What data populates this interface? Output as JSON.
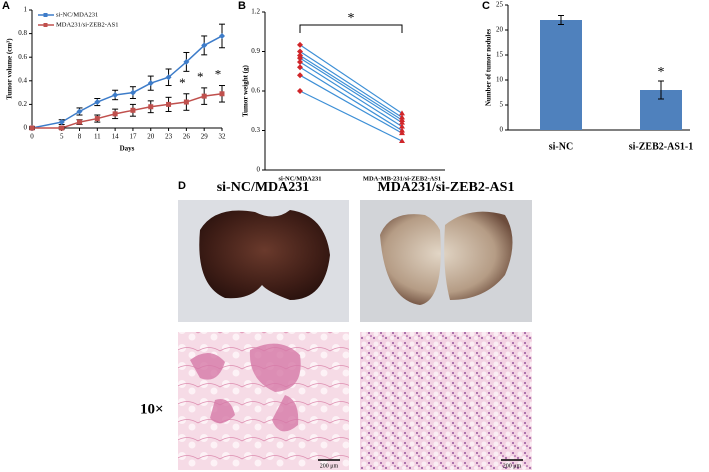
{
  "chart_data": [
    {
      "type": "line",
      "label": "A",
      "xlabel": "Days",
      "ylabel": "Tumor volume (cm³)",
      "x": [
        0,
        5,
        8,
        11,
        14,
        17,
        20,
        23,
        26,
        29,
        32
      ],
      "xlim": [
        0,
        32
      ],
      "xticks": [
        0,
        5,
        8,
        11,
        14,
        17,
        20,
        23,
        26,
        29,
        32
      ],
      "ylim": [
        0,
        1
      ],
      "yticks": [
        0,
        0.2,
        0.4,
        0.6,
        0.8,
        1
      ],
      "legend": "upper left",
      "series": [
        {
          "name": "si-NC/MDA231",
          "color": "#3d7cc9",
          "marker": "diamond",
          "values": [
            0,
            0.05,
            0.14,
            0.22,
            0.28,
            0.3,
            0.38,
            0.43,
            0.56,
            0.7,
            0.78
          ],
          "errors": [
            0.01,
            0.02,
            0.03,
            0.03,
            0.04,
            0.05,
            0.06,
            0.07,
            0.08,
            0.08,
            0.1
          ]
        },
        {
          "name": "MDA231/si-ZEB2-AS1",
          "color": "#c0504d",
          "marker": "square",
          "values": [
            0,
            0,
            0.05,
            0.08,
            0.12,
            0.15,
            0.18,
            0.2,
            0.22,
            0.27,
            0.29
          ],
          "errors": [
            0.01,
            0.01,
            0.02,
            0.03,
            0.04,
            0.05,
            0.05,
            0.06,
            0.07,
            0.07,
            0.07
          ]
        }
      ],
      "annotations": [
        {
          "x": 26,
          "text": "*"
        },
        {
          "x": 29,
          "text": "*"
        },
        {
          "x": 32,
          "text": "*"
        }
      ]
    },
    {
      "type": "paired",
      "label": "B",
      "ylabel": "Tumor weight (g)",
      "categories": [
        "si-NC/MDA231",
        "MDA-MB-231/si-ZEB2-AS1"
      ],
      "ylim": [
        0,
        1.2
      ],
      "yticks": [
        0,
        0.3,
        0.6,
        0.9,
        1.2
      ],
      "line_color": "#3d8fd6",
      "marker_color": "#d0262a",
      "values": [
        [
          0.95,
          0.43
        ],
        [
          0.9,
          0.4
        ],
        [
          0.87,
          0.38
        ],
        [
          0.85,
          0.36
        ],
        [
          0.82,
          0.33
        ],
        [
          0.78,
          0.3
        ],
        [
          0.72,
          0.28
        ],
        [
          0.6,
          0.22
        ]
      ],
      "annotation": "*"
    },
    {
      "type": "bar",
      "label": "C",
      "ylabel": "Number of tumor nodules",
      "categories": [
        "si-NC",
        "si-ZEB2-AS1-1"
      ],
      "values": [
        22,
        8
      ],
      "errors": [
        0.9,
        1.8
      ],
      "color": "#4f81bd",
      "ylim": [
        0,
        25
      ],
      "yticks": [
        0,
        5,
        10,
        15,
        20,
        25
      ],
      "annotations": [
        null,
        "*"
      ]
    }
  ],
  "panel_d": {
    "label": "D",
    "columns": [
      "si-NC/MDA231",
      "MDA231/si-ZEB2-AS1"
    ],
    "row_label": "10×",
    "scale_bar": "200 μm"
  }
}
